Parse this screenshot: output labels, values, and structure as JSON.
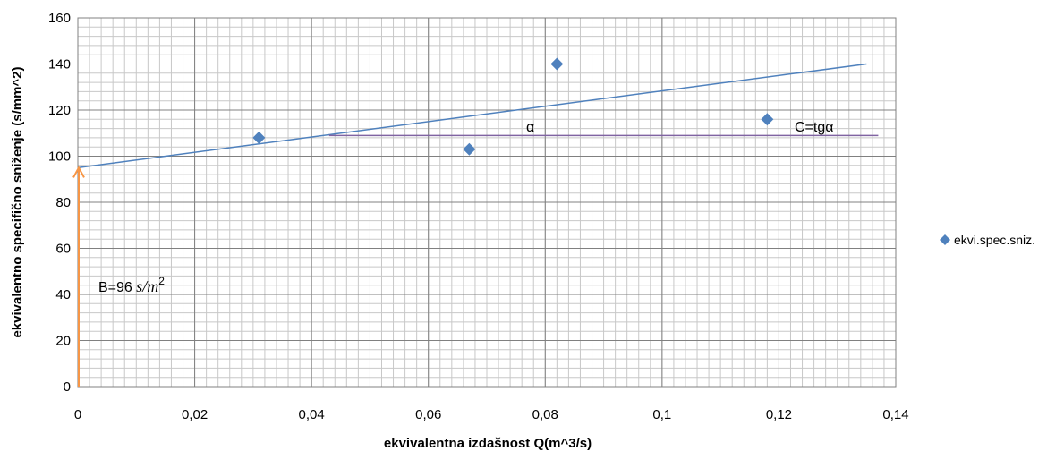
{
  "chart_data": {
    "type": "scatter",
    "xlabel": "ekvivalentna izdašnost Q(m^3/s)",
    "ylabel": "ekvivalentno specifično sniženje (s/mm^2)",
    "xlim": [
      0,
      0.14
    ],
    "ylim": [
      0,
      160
    ],
    "x_ticks": [
      0,
      0.02,
      0.04,
      0.06,
      0.08,
      0.1,
      0.12,
      0.14
    ],
    "x_tick_labels": [
      "0",
      "0,02",
      "0,04",
      "0,06",
      "0,08",
      "0,1",
      "0,12",
      "0,14"
    ],
    "y_ticks": [
      0,
      20,
      40,
      60,
      80,
      100,
      120,
      140,
      160
    ],
    "y_tick_labels": [
      "0",
      "20",
      "40",
      "60",
      "80",
      "100",
      "120",
      "140",
      "160"
    ],
    "grid": true,
    "legend_position": "right",
    "series": [
      {
        "name": "ekvi.spec.sniz.",
        "marker": "diamond",
        "color": "#4f81bd",
        "points": [
          {
            "x": 0.031,
            "y": 108
          },
          {
            "x": 0.067,
            "y": 103
          },
          {
            "x": 0.082,
            "y": 140
          },
          {
            "x": 0.118,
            "y": 116
          }
        ]
      }
    ],
    "trendline": {
      "color": "#4f81bd",
      "from": [
        0,
        95
      ],
      "to": [
        0.135,
        140
      ]
    },
    "horizontal_line": {
      "color": "#8064a2",
      "y": 109,
      "x_from": 0.043,
      "x_to": 0.137
    },
    "arrow": {
      "color": "#f79646",
      "x": 0,
      "y_from": 0,
      "y_to": 95
    },
    "annotations": {
      "alpha": "α",
      "c_label": "C=tgα",
      "b_label": "B=96 ",
      "b_unit": "s/m",
      "b_exp": "2"
    }
  }
}
